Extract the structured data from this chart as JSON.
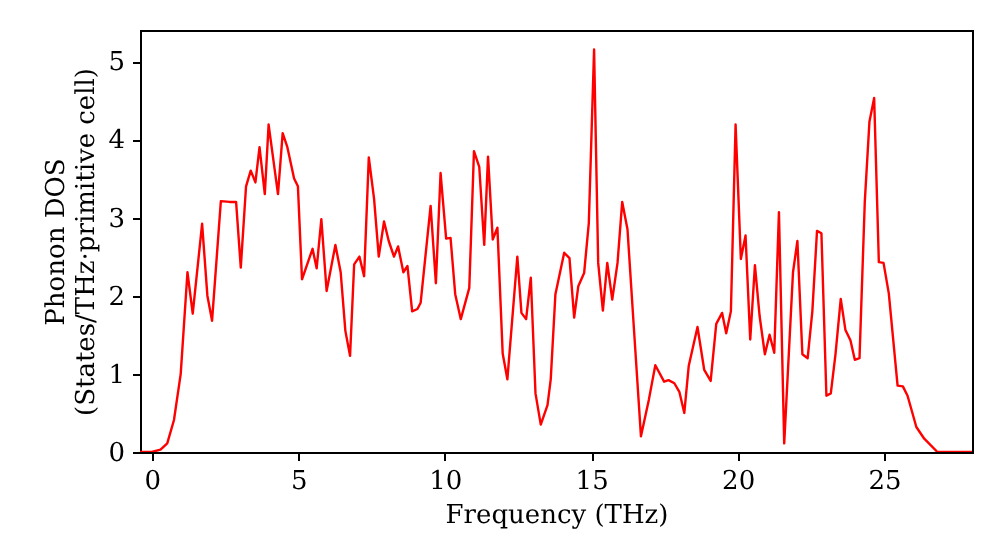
{
  "chart_data": {
    "type": "line",
    "xlabel": "Frequency (THz)",
    "ylabel": "Phonon DOS\n(States/THz·primitive cell)",
    "x": [
      -0.4,
      0,
      0.3,
      0.53,
      0.76,
      0.99,
      1.22,
      1.4,
      1.72,
      1.9,
      2.06,
      2.36,
      2.66,
      2.88,
      3.04,
      3.22,
      3.38,
      3.54,
      3.68,
      3.86,
      3.99,
      4.31,
      4.47,
      4.63,
      4.86,
      4.99,
      5.13,
      5.49,
      5.63,
      5.79,
      5.97,
      6.27,
      6.45,
      6.61,
      6.77,
      6.91,
      7.09,
      7.25,
      7.41,
      7.59,
      7.75,
      7.93,
      8.09,
      8.27,
      8.41,
      8.59,
      8.73,
      8.89,
      9.07,
      9.18,
      9.52,
      9.7,
      9.86,
      10.05,
      10.2,
      10.36,
      10.55,
      10.84,
      11.0,
      11.18,
      11.35,
      11.48,
      11.64,
      11.8,
      11.98,
      12.14,
      12.48,
      12.62,
      12.78,
      12.94,
      13.1,
      13.28,
      13.51,
      13.62,
      13.78,
      14.08,
      14.26,
      14.42,
      14.56,
      14.76,
      14.92,
      15.1,
      15.24,
      15.4,
      15.55,
      15.72,
      15.9,
      16.06,
      16.24,
      16.47,
      16.7,
      16.97,
      17.19,
      17.49,
      17.64,
      17.84,
      18.01,
      18.18,
      18.33,
      18.63,
      18.86,
      19.08,
      19.27,
      19.47,
      19.61,
      19.77,
      19.93,
      20.11,
      20.27,
      20.43,
      20.59,
      20.75,
      20.93,
      21.09,
      21.25,
      21.41,
      21.59,
      21.89,
      22.04,
      22.21,
      22.39,
      22.55,
      22.71,
      22.86,
      23.03,
      23.18,
      23.34,
      23.52,
      23.68,
      23.85,
      24.0,
      24.16,
      24.34,
      24.5,
      24.66,
      24.82,
      24.98,
      25.16,
      25.46,
      25.64,
      25.8,
      26.1,
      26.37,
      26.82,
      28.0
    ],
    "series": [
      {
        "color": "#ff0000",
        "values": [
          0,
          0,
          0.03,
          0.11,
          0.41,
          1.0,
          2.3,
          1.77,
          2.92,
          2.0,
          1.68,
          3.21,
          3.2,
          3.2,
          2.36,
          3.4,
          3.6,
          3.45,
          3.9,
          3.3,
          4.19,
          3.3,
          4.08,
          3.9,
          3.5,
          3.4,
          2.21,
          2.6,
          2.35,
          2.98,
          2.06,
          2.65,
          2.3,
          1.55,
          1.23,
          2.4,
          2.5,
          2.25,
          3.77,
          3.24,
          2.5,
          2.95,
          2.7,
          2.5,
          2.63,
          2.3,
          2.38,
          1.8,
          1.83,
          1.91,
          3.15,
          2.16,
          3.57,
          2.73,
          2.74,
          2.02,
          1.7,
          2.1,
          3.85,
          3.65,
          2.65,
          3.78,
          2.72,
          2.87,
          1.26,
          0.93,
          2.5,
          1.78,
          1.7,
          2.23,
          0.75,
          0.35,
          0.6,
          0.93,
          2.02,
          2.55,
          2.48,
          1.72,
          2.12,
          2.29,
          2.93,
          5.15,
          2.42,
          1.81,
          2.42,
          1.95,
          2.42,
          3.2,
          2.85,
          1.52,
          0.2,
          0.67,
          1.11,
          0.9,
          0.92,
          0.88,
          0.77,
          0.5,
          1.1,
          1.6,
          1.05,
          0.91,
          1.64,
          1.78,
          1.52,
          1.8,
          4.19,
          2.47,
          2.77,
          1.44,
          2.39,
          1.74,
          1.25,
          1.5,
          1.27,
          3.07,
          0.11,
          2.3,
          2.7,
          1.25,
          1.2,
          1.8,
          2.83,
          2.8,
          0.72,
          0.75,
          1.25,
          1.96,
          1.56,
          1.43,
          1.18,
          1.2,
          3.2,
          4.23,
          4.53,
          2.43,
          2.42,
          2.03,
          0.85,
          0.84,
          0.72,
          0.32,
          0.17,
          0,
          0
        ]
      }
    ],
    "xlim": [
      -0.4,
      28
    ],
    "ylim": [
      0,
      5.4
    ],
    "xticks": [
      0,
      5,
      10,
      15,
      20,
      25
    ],
    "yticks": [
      0,
      1,
      2,
      3,
      4,
      5
    ],
    "grid": false,
    "legend": false
  }
}
